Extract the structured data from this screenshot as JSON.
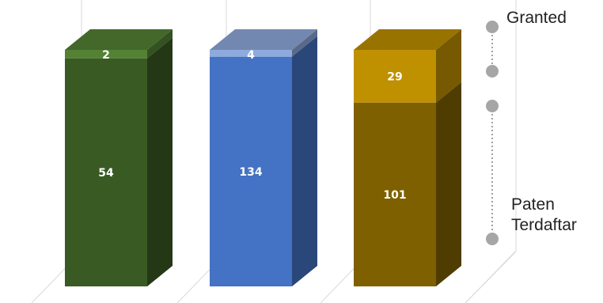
{
  "chart_data": {
    "type": "bar",
    "stacked": true,
    "three_d": true,
    "categories": [
      "",
      "",
      ""
    ],
    "series": [
      {
        "name": "Paten Terdaftar",
        "values": [
          54,
          134,
          101
        ]
      },
      {
        "name": "Granted",
        "values": [
          2,
          4,
          29
        ]
      }
    ],
    "bar_colors": [
      {
        "base": "#3a5a23",
        "top": "#548235"
      },
      {
        "base": "#4472c4",
        "top": "#8faadc"
      },
      {
        "base": "#7f6000",
        "top": "#bf9000"
      }
    ],
    "legend": {
      "position": "right",
      "entries": [
        "Granted",
        "Paten Terdaftar"
      ]
    },
    "grid": true,
    "title": "",
    "xlabel": "",
    "ylabel": ""
  }
}
